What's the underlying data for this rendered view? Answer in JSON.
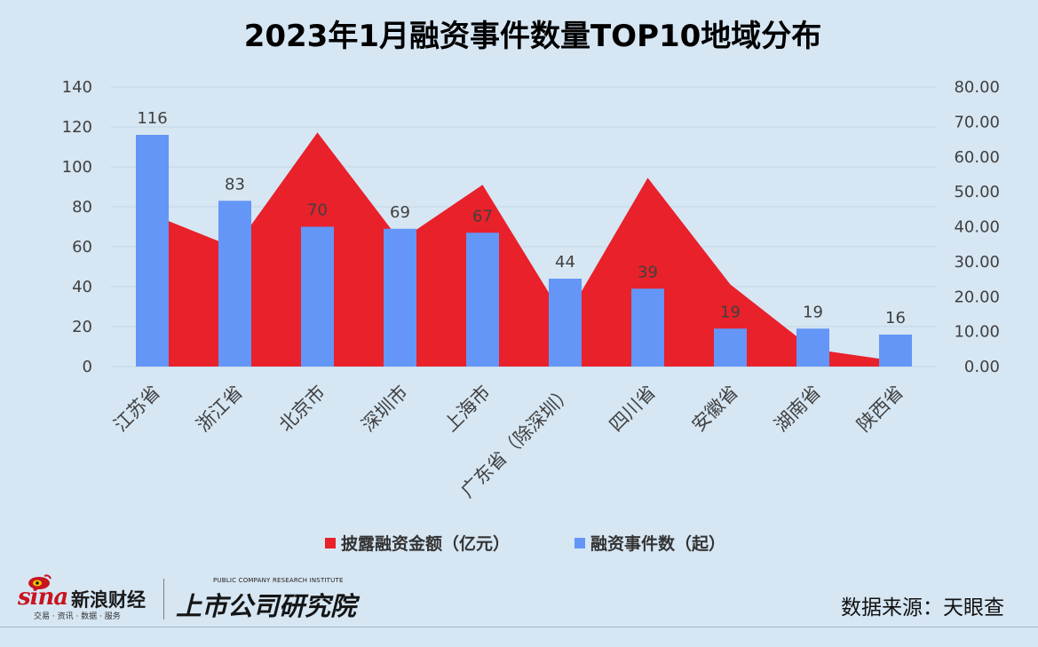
{
  "chart_data": {
    "type": "bar",
    "combo": "bar + area (secondary axis)",
    "title": "2023年1月融资事件数量TOP10地域分布",
    "categories": [
      "江苏省",
      "浙江省",
      "北京市",
      "深圳市",
      "上海市",
      "广东省（除深圳）",
      "四川省",
      "安徽省",
      "湖南省",
      "陕西省"
    ],
    "series": [
      {
        "name": "披露融资金额（亿元）",
        "type": "area",
        "axis": "right",
        "color": "#e8212b",
        "values": [
          43.5,
          34,
          67,
          36,
          52,
          13.5,
          54,
          23.5,
          5,
          1.6
        ]
      },
      {
        "name": "融资事件数（起）",
        "type": "bar",
        "axis": "left",
        "color": "#6496f8",
        "values": [
          116,
          83,
          70,
          69,
          67,
          44,
          39,
          19,
          19,
          16
        ],
        "data_labels": [
          "116",
          "83",
          "70",
          "69",
          "67",
          "44",
          "39",
          "19",
          "19",
          "16"
        ]
      }
    ],
    "y_left": {
      "min": 0,
      "max": 140,
      "ticks": [
        "0",
        "20",
        "40",
        "60",
        "80",
        "100",
        "120",
        "140"
      ]
    },
    "y_right": {
      "min": 0,
      "max": 80,
      "ticks": [
        "0.00",
        "10.00",
        "20.00",
        "30.00",
        "40.00",
        "50.00",
        "60.00",
        "70.00",
        "80.00"
      ]
    },
    "xlabel": "",
    "ylabel": "",
    "grid": true,
    "legend": "bottom",
    "label_color": "#404040",
    "grid_color": "#c3d6e6"
  },
  "footer": {
    "sina_word": "sina",
    "sina_cn": "新浪财经",
    "sina_tagline": "交易 · 资讯 · 数据 · 服务",
    "institute_en": "PUBLIC COMPANY RESEARCH INSTITUTE",
    "institute_cn": "上市公司研究院",
    "source": "数据来源：天眼查"
  }
}
